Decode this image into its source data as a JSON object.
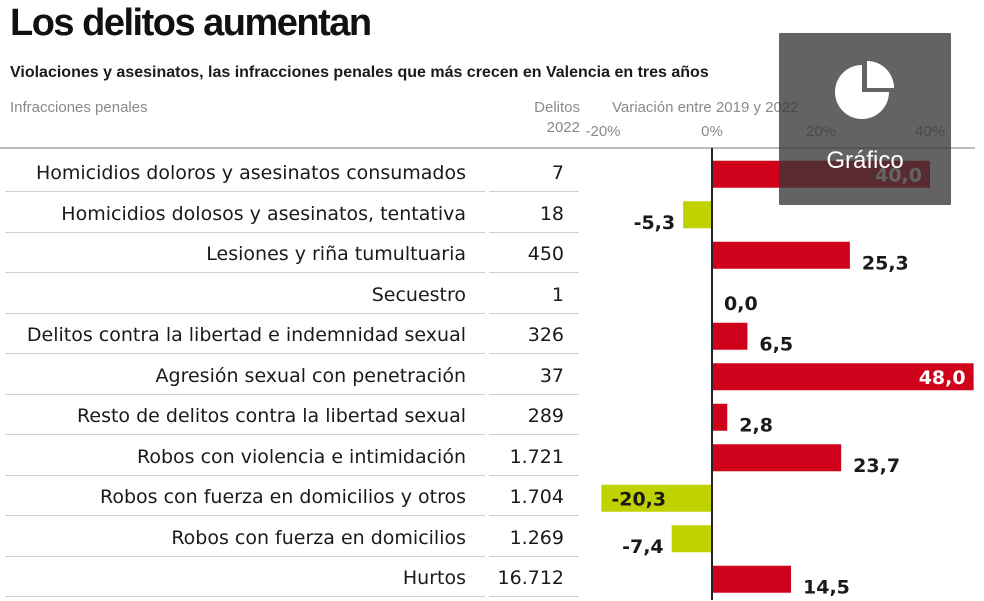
{
  "header": {
    "title": "Los delitos aumentan",
    "subtitle": "Violaciones y asesinatos, las infracciones penales que más crecen en Valencia en tres años",
    "col_infracciones": "Infracciones penales",
    "col_delitos_line1": "Delitos",
    "col_delitos_line2": "2022",
    "col_variacion": "Variación entre 2019 y 2022"
  },
  "overlay": {
    "label": "Gráfico",
    "icon": "pie-chart-icon"
  },
  "colors": {
    "increase": "#d0021b",
    "decrease": "#bfd200",
    "axis": "#222222"
  },
  "chart_data": {
    "type": "bar",
    "orientation": "horizontal",
    "xlim": [
      -20,
      48
    ],
    "xticks": [
      "-20%",
      "0%",
      "20%",
      "40%"
    ],
    "xtick_values": [
      -20,
      0,
      20,
      40
    ],
    "categories": [
      "Homicidios doloros y asesinatos consumados",
      "Homicidios dolosos y asesinatos, tentativa",
      "Lesiones y riña tumultuaria",
      "Secuestro",
      "Delitos contra la libertad e indemnidad sexual",
      "Agresión sexual con penetración",
      "Resto de delitos contra la libertad sexual",
      "Robos con violencia e intimidación",
      "Robos con fuerza en domicilios y otros",
      "Robos con fuerza en domicilios",
      "Hurtos"
    ],
    "delitos_2022": [
      "7",
      "18",
      "450",
      "1",
      "326",
      "37",
      "289",
      "1.721",
      "1.704",
      "1.269",
      "16.712"
    ],
    "values": [
      40.0,
      -5.3,
      25.3,
      0.0,
      6.5,
      48.0,
      2.8,
      23.7,
      -20.3,
      -7.4,
      14.5
    ],
    "value_labels": [
      "40,0",
      "-5,3",
      "25,3",
      "0,0",
      "6,5",
      "48,0",
      "2,8",
      "23,7",
      "-20,3",
      "-7,4",
      "14,5"
    ]
  }
}
